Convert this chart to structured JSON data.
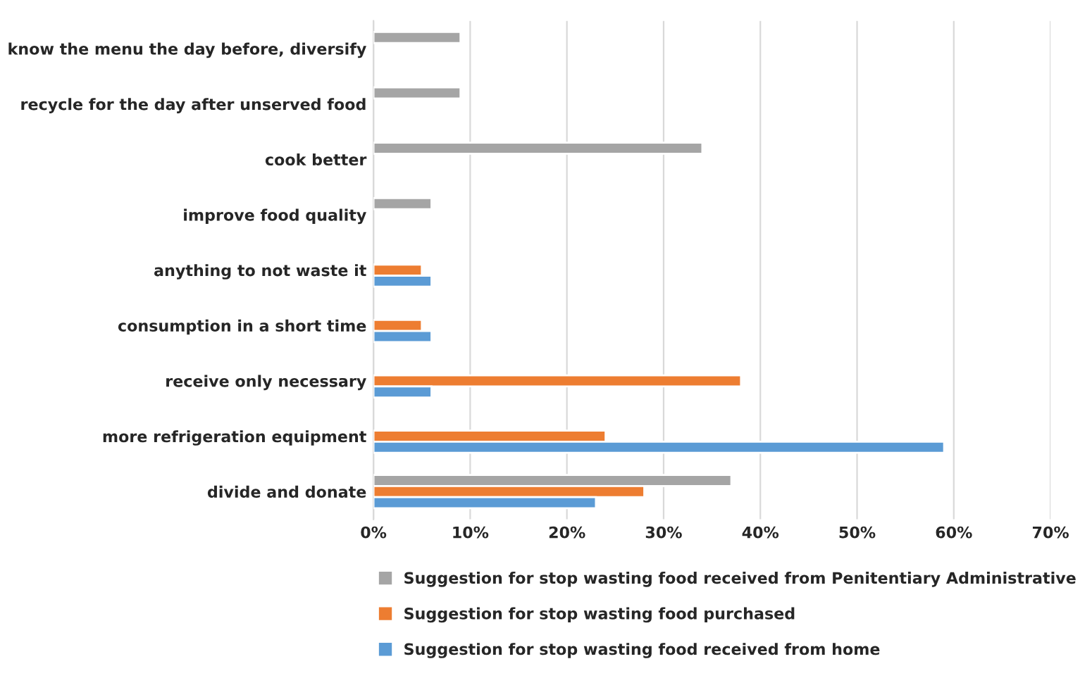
{
  "chart_data": {
    "type": "bar",
    "orientation": "horizontal",
    "categories": [
      "know the menu the day before, diversify",
      "recycle for the day after unserved food",
      "cook better",
      "improve food quality",
      "anything to not waste it",
      "consumption in a short time",
      "receive only necessary",
      "more refrigeration equipment",
      "divide and donate"
    ],
    "series": [
      {
        "name": "Suggestion for stop wasting food received from Penitentiary Administrative",
        "color": "#a5a5a5",
        "values": [
          9,
          9,
          34,
          6,
          null,
          null,
          null,
          null,
          37
        ]
      },
      {
        "name": "Suggestion for stop wasting food purchased",
        "color": "#ed7d31",
        "values": [
          null,
          null,
          null,
          null,
          5,
          5,
          38,
          24,
          28
        ]
      },
      {
        "name": "Suggestion for stop wasting food received from home",
        "color": "#5b9bd5",
        "values": [
          null,
          null,
          null,
          null,
          6,
          6,
          6,
          59,
          23
        ]
      }
    ],
    "xlim": [
      0,
      70
    ],
    "xticks": [
      {
        "value": 0,
        "label": "0%"
      },
      {
        "value": 10,
        "label": "10%"
      },
      {
        "value": 20,
        "label": "20%"
      },
      {
        "value": 30,
        "label": "30%"
      },
      {
        "value": 40,
        "label": "40%"
      },
      {
        "value": 50,
        "label": "50%"
      },
      {
        "value": 60,
        "label": "60%"
      },
      {
        "value": 70,
        "label": "70%"
      }
    ],
    "grid": "x",
    "legend": "bottom"
  }
}
